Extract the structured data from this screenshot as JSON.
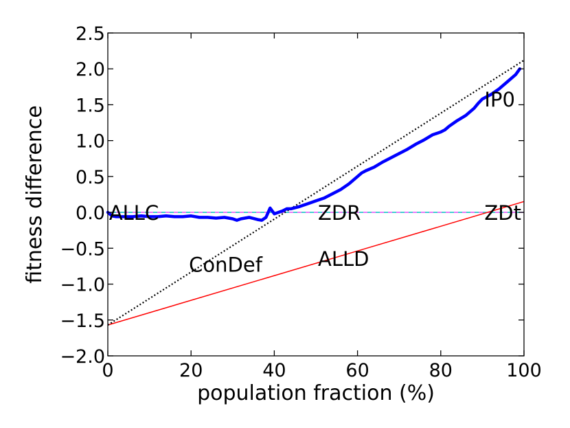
{
  "chart_data": {
    "type": "line",
    "xlabel": "population fraction (%)",
    "ylabel": "fitness difference",
    "xlim": [
      0,
      100
    ],
    "ylim": [
      -2.0,
      2.5
    ],
    "xticks": [
      0,
      20,
      40,
      60,
      80,
      100
    ],
    "xtick_labels": [
      "0",
      "20",
      "40",
      "60",
      "80",
      "100"
    ],
    "yticks": [
      -2.0,
      -1.5,
      -1.0,
      -0.5,
      0.0,
      0.5,
      1.0,
      1.5,
      2.0,
      2.5
    ],
    "ytick_labels": [
      "−2.0",
      "−1.5",
      "−1.0",
      "−0.5",
      "0.0",
      "0.5",
      "1.0",
      "1.5",
      "2.0",
      "2.5"
    ],
    "grid": false,
    "series": [
      {
        "style": "solid-thick",
        "color": "#0000ff",
        "x": [
          0,
          1,
          2,
          4,
          6,
          8,
          10,
          12,
          14,
          16,
          18,
          20,
          22,
          24,
          26,
          28,
          30,
          31,
          32,
          34,
          36,
          37,
          38,
          39,
          40,
          41,
          42,
          43,
          44,
          46,
          48,
          50,
          52,
          54,
          56,
          58,
          60,
          61,
          62,
          64,
          66,
          68,
          70,
          72,
          74,
          75,
          76,
          78,
          80,
          81,
          82,
          84,
          86,
          88,
          89,
          90,
          92,
          94,
          96,
          98,
          99
        ],
        "y": [
          0.0,
          -0.05,
          -0.06,
          -0.06,
          -0.06,
          -0.05,
          -0.06,
          -0.06,
          -0.05,
          -0.06,
          -0.06,
          -0.05,
          -0.07,
          -0.07,
          -0.08,
          -0.07,
          -0.09,
          -0.11,
          -0.09,
          -0.07,
          -0.1,
          -0.11,
          -0.07,
          0.06,
          -0.02,
          0.0,
          0.02,
          0.05,
          0.05,
          0.08,
          0.12,
          0.16,
          0.2,
          0.26,
          0.32,
          0.4,
          0.5,
          0.55,
          0.58,
          0.63,
          0.7,
          0.76,
          0.82,
          0.88,
          0.95,
          0.98,
          1.01,
          1.08,
          1.12,
          1.15,
          1.2,
          1.28,
          1.35,
          1.45,
          1.52,
          1.58,
          1.64,
          1.72,
          1.82,
          1.92,
          2.0
        ]
      },
      {
        "style": "dotted",
        "color": "#000000",
        "x": [
          0,
          100
        ],
        "y": [
          -1.57,
          2.12
        ]
      },
      {
        "style": "solid-thin",
        "color": "#ff0000",
        "x": [
          0,
          100
        ],
        "y": [
          -1.57,
          0.15
        ]
      },
      {
        "style": "dashed-multicolor",
        "color": "#00bfbf",
        "color2": "#ff55ff",
        "x": [
          0,
          100
        ],
        "y": [
          0.0,
          0.0
        ]
      }
    ],
    "annotations": [
      {
        "text": "ALLC",
        "x": 0.3,
        "y": 0.0
      },
      {
        "text": "ZDR",
        "x": 50.5,
        "y": 0.0
      },
      {
        "text": "ZDt",
        "x": 90.5,
        "y": 0.0
      },
      {
        "text": "IP0",
        "x": 90.5,
        "y": 1.58
      },
      {
        "text": "ConDef",
        "x": 19.5,
        "y": -0.72
      },
      {
        "text": "ALLD",
        "x": 50.5,
        "y": -0.64
      }
    ]
  }
}
